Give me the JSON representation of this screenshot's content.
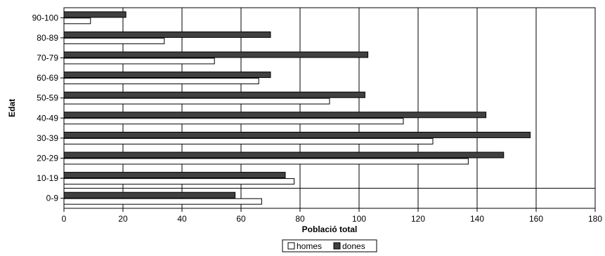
{
  "chart_data": {
    "type": "bar",
    "orientation": "horizontal",
    "categories": [
      "0-9",
      "10-19",
      "20-29",
      "30-39",
      "40-49",
      "50-59",
      "60-69",
      "70-79",
      "80-89",
      "90-100"
    ],
    "series": [
      {
        "name": "homes",
        "values": [
          67,
          78,
          137,
          125,
          115,
          90,
          66,
          51,
          34,
          9
        ],
        "color": "#ffffff"
      },
      {
        "name": "dones",
        "values": [
          58,
          75,
          149,
          158,
          143,
          102,
          70,
          103,
          70,
          21
        ],
        "color": "#404040"
      }
    ],
    "xlabel": "Població total",
    "ylabel": "Edat",
    "xlim": [
      0,
      180
    ],
    "xticks": [
      0,
      20,
      40,
      60,
      80,
      100,
      120,
      140,
      160,
      180
    ],
    "grid": "vertical",
    "legend": "bottom-center"
  }
}
